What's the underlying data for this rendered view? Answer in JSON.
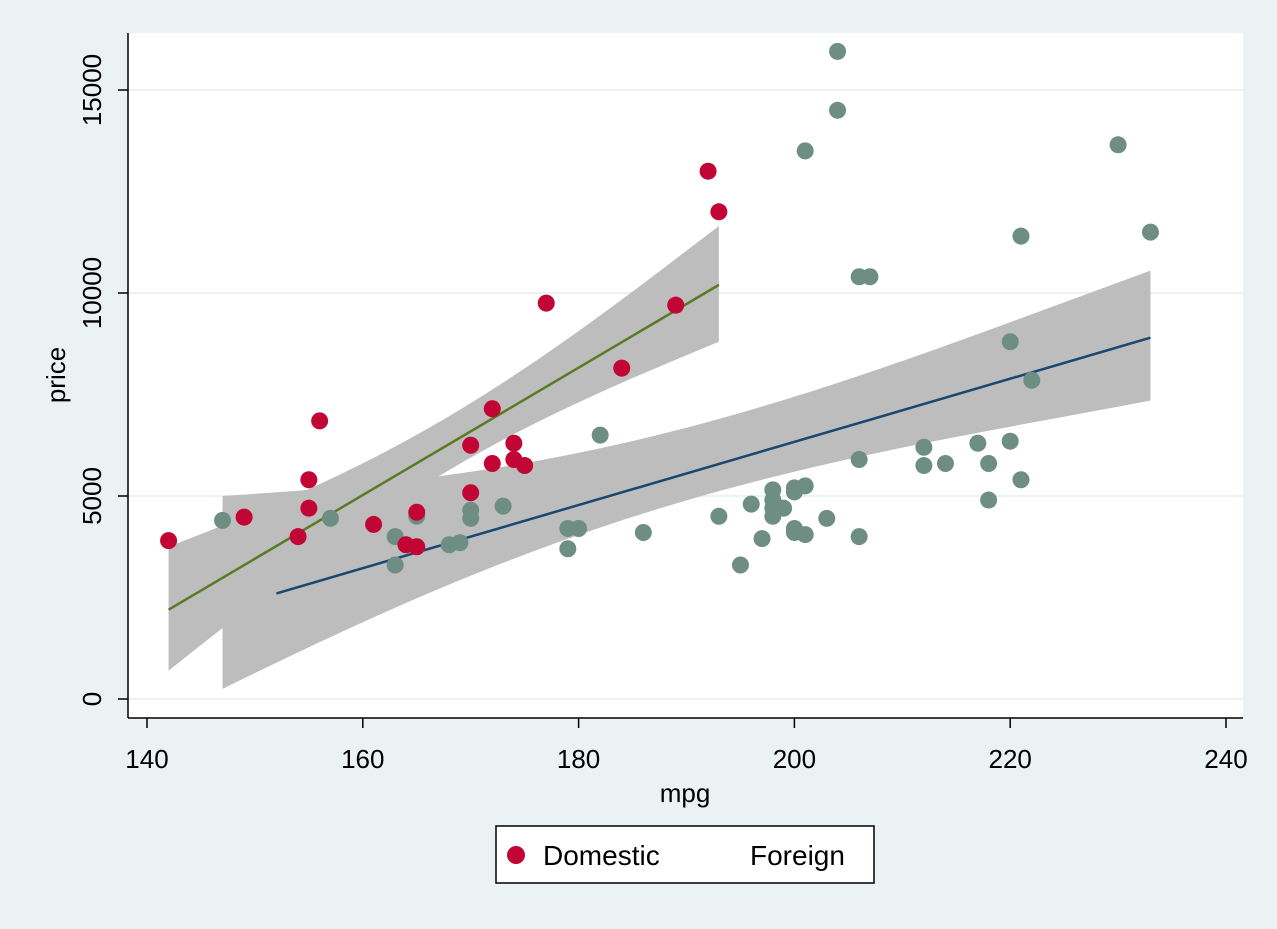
{
  "chart_data": {
    "type": "scatter",
    "xlabel": "mpg",
    "ylabel": "price",
    "xlim": [
      135,
      242
    ],
    "ylim": [
      -500,
      16300
    ],
    "xticks": [
      140,
      160,
      180,
      200,
      220,
      240
    ],
    "yticks": [
      0,
      5000,
      10000,
      15000
    ],
    "grid": "horizontal",
    "legend_position": "bottom",
    "colors": {
      "background": "#eaf2f3",
      "plot_bg": "#ffffff",
      "gridline": "#eaf2f3",
      "domestic_marker": "#c10534",
      "foreign_marker": "#6e8e84",
      "domestic_fit": "#5a7b25",
      "foreign_fit": "#1a476f",
      "ci_band": "#bdbdbd"
    },
    "series": [
      {
        "name": "Domestic",
        "points": [
          [
            142,
            3900
          ],
          [
            149,
            4480
          ],
          [
            154,
            4000
          ],
          [
            155,
            4700
          ],
          [
            155,
            5400
          ],
          [
            156,
            6850
          ],
          [
            161,
            4300
          ],
          [
            164,
            3800
          ],
          [
            165,
            3750
          ],
          [
            165,
            4600
          ],
          [
            170,
            5080
          ],
          [
            170,
            6250
          ],
          [
            172,
            5800
          ],
          [
            172,
            7150
          ],
          [
            174,
            6300
          ],
          [
            174,
            5900
          ],
          [
            175,
            5750
          ],
          [
            177,
            9750
          ],
          [
            184,
            8150
          ],
          [
            189,
            9700
          ],
          [
            192,
            13000
          ],
          [
            193,
            12000
          ]
        ]
      },
      {
        "name": "Foreign",
        "points": [
          [
            147,
            4400
          ],
          [
            157,
            4450
          ],
          [
            163,
            4000
          ],
          [
            163,
            3300
          ],
          [
            165,
            4500
          ],
          [
            168,
            3800
          ],
          [
            169,
            3850
          ],
          [
            170,
            4650
          ],
          [
            170,
            4450
          ],
          [
            173,
            4750
          ],
          [
            179,
            4200
          ],
          [
            179,
            3700
          ],
          [
            180,
            4200
          ],
          [
            182,
            6500
          ],
          [
            186,
            4100
          ],
          [
            193,
            4500
          ],
          [
            195,
            3300
          ],
          [
            196,
            4800
          ],
          [
            197,
            3950
          ],
          [
            198,
            5150
          ],
          [
            198,
            4900
          ],
          [
            198,
            4700
          ],
          [
            198,
            4500
          ],
          [
            199,
            4700
          ],
          [
            200,
            5200
          ],
          [
            200,
            5100
          ],
          [
            200,
            4200
          ],
          [
            200,
            4100
          ],
          [
            201,
            5250
          ],
          [
            201,
            4050
          ],
          [
            201,
            13500
          ],
          [
            203,
            4450
          ],
          [
            204,
            15950
          ],
          [
            204,
            14500
          ],
          [
            206,
            10400
          ],
          [
            206,
            5900
          ],
          [
            206,
            4000
          ],
          [
            207,
            10400
          ],
          [
            212,
            6200
          ],
          [
            212,
            5750
          ],
          [
            214,
            5800
          ],
          [
            217,
            6300
          ],
          [
            218,
            5800
          ],
          [
            218,
            4900
          ],
          [
            220,
            8800
          ],
          [
            220,
            6350
          ],
          [
            221,
            11400
          ],
          [
            221,
            5400
          ],
          [
            222,
            7850
          ],
          [
            230,
            13650
          ],
          [
            233,
            11500
          ]
        ]
      }
    ],
    "fits": [
      {
        "series": "Domestic",
        "x": [
          142,
          193
        ],
        "y": [
          2200,
          10200
        ],
        "ci_lower": [
          700,
          8800
        ],
        "ci_upper": [
          3750,
          11650
        ]
      },
      {
        "series": "Foreign",
        "x": [
          152,
          233
        ],
        "y": [
          2600,
          8900
        ],
        "band_x": [
          147,
          233
        ],
        "ci_lower": [
          250,
          7350
        ],
        "ci_upper": [
          5000,
          10550
        ]
      }
    ],
    "legend": {
      "entries": [
        {
          "label": "Domestic",
          "marker": true
        },
        {
          "label": "Foreign",
          "marker": false
        }
      ]
    }
  }
}
